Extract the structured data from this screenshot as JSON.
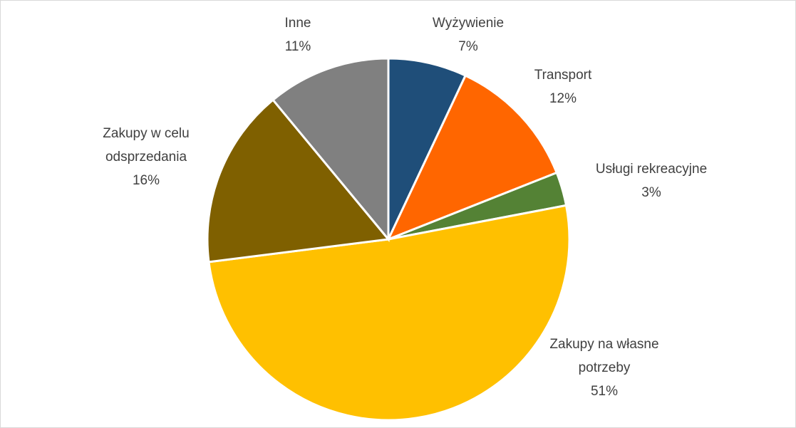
{
  "chart_data": {
    "type": "pie",
    "categories": [
      "Wyżywienie",
      "Transport",
      "Usługi rekreacyjne",
      "Zakupy na własne potrzeby",
      "Zakupy w celu odsprzedania",
      "Inne"
    ],
    "values": [
      7,
      12,
      3,
      51,
      16,
      11
    ],
    "value_labels": [
      "7%",
      "12%",
      "3%",
      "51%",
      "16%",
      "11%"
    ],
    "colors": [
      "#1f4e79",
      "#ff6600",
      "#548235",
      "#ffc000",
      "#7f6000",
      "#808080"
    ]
  }
}
